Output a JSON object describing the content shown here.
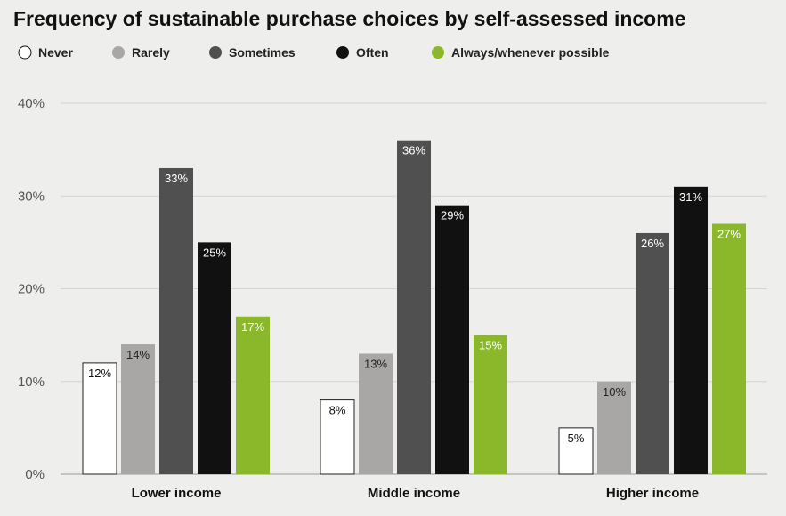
{
  "chart_data": {
    "type": "bar",
    "title": "Frequency of sustainable purchase choices by self-assessed income",
    "categories": [
      "Lower income",
      "Middle income",
      "Higher income"
    ],
    "series": [
      {
        "name": "Never",
        "values": [
          12,
          8,
          5
        ],
        "color": "#ffffff"
      },
      {
        "name": "Rarely",
        "values": [
          14,
          13,
          10
        ],
        "color": "#a9a7a6"
      },
      {
        "name": "Sometimes",
        "values": [
          33,
          36,
          26
        ],
        "color": "#505050"
      },
      {
        "name": "Often",
        "values": [
          25,
          29,
          31
        ],
        "color": "#111111"
      },
      {
        "name": "Always/whenever possible",
        "values": [
          17,
          15,
          27
        ],
        "color": "#8ab82a"
      }
    ],
    "value_suffix": "%",
    "ylim": [
      0,
      40
    ],
    "yticks": [
      "0%",
      "10%",
      "20%",
      "30%",
      "40%"
    ],
    "ytick_values": [
      0,
      10,
      20,
      30,
      40
    ],
    "grid": true,
    "legend_position": "top-left"
  }
}
